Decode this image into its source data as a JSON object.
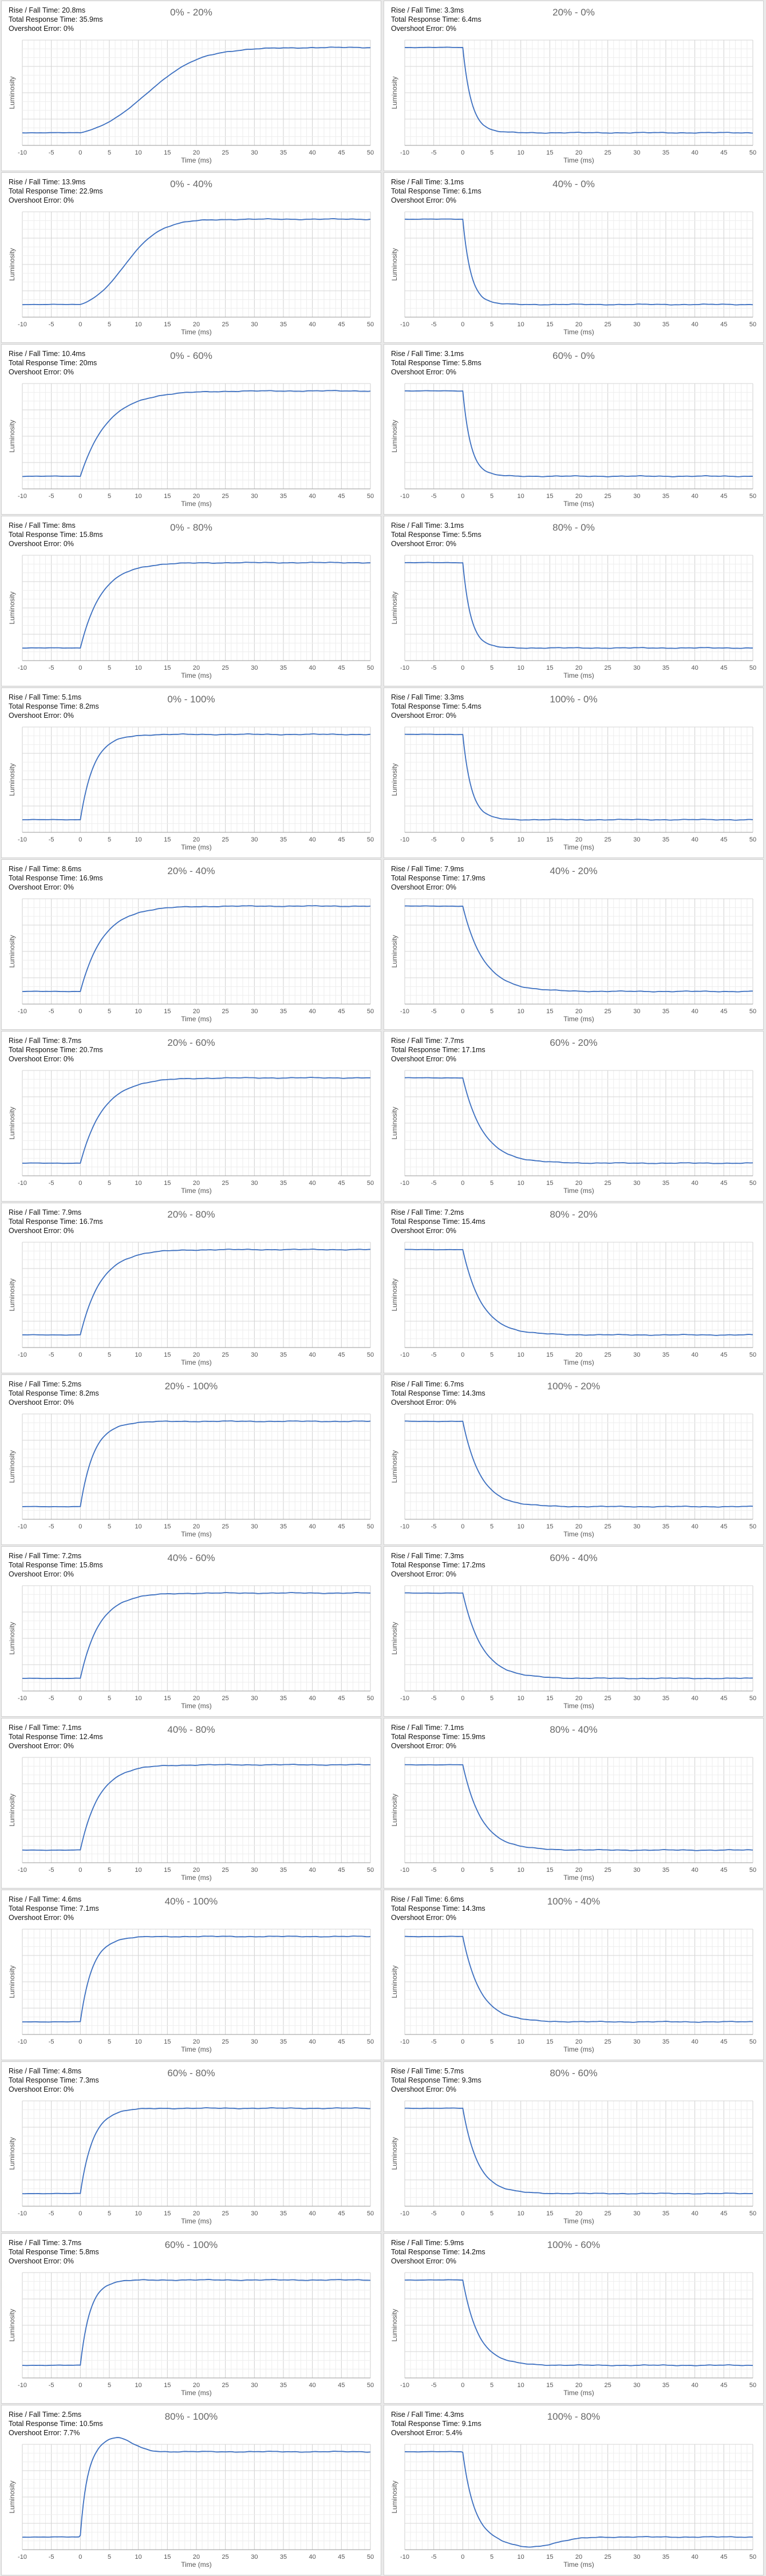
{
  "x_axis_label": "Time (ms)",
  "y_axis_label": "Luminosity",
  "stat_labels": {
    "rise_fall": "Rise / Fall Time:",
    "total": "Total Response Time:",
    "overshoot": "Overshoot Error:"
  },
  "chart_data": [
    {
      "type": "line",
      "title": "0% - 20%",
      "rise_fall_time": "20.8ms",
      "total_response_time": "35.9ms",
      "overshoot_error": "0%",
      "xlim": [
        -10,
        50
      ],
      "x_ticks": [
        -10,
        -5,
        0,
        5,
        10,
        15,
        20,
        25,
        30,
        35,
        40,
        45,
        50
      ],
      "from_level": 0,
      "to_level": 20,
      "series_color": "#3c6fc0",
      "grid": true
    },
    {
      "type": "line",
      "title": "20% - 0%",
      "rise_fall_time": "3.3ms",
      "total_response_time": "6.4ms",
      "overshoot_error": "0%",
      "xlim": [
        -10,
        50
      ],
      "x_ticks": [
        -10,
        -5,
        0,
        5,
        10,
        15,
        20,
        25,
        30,
        35,
        40,
        45,
        50
      ],
      "from_level": 20,
      "to_level": 0,
      "series_color": "#3c6fc0",
      "grid": true
    },
    {
      "type": "line",
      "title": "0% - 40%",
      "rise_fall_time": "13.9ms",
      "total_response_time": "22.9ms",
      "overshoot_error": "0%",
      "xlim": [
        -10,
        50
      ],
      "x_ticks": [
        -10,
        -5,
        0,
        5,
        10,
        15,
        20,
        25,
        30,
        35,
        40,
        45,
        50
      ],
      "from_level": 0,
      "to_level": 40,
      "series_color": "#3c6fc0",
      "grid": true
    },
    {
      "type": "line",
      "title": "40% - 0%",
      "rise_fall_time": "3.1ms",
      "total_response_time": "6.1ms",
      "overshoot_error": "0%",
      "xlim": [
        -10,
        50
      ],
      "x_ticks": [
        -10,
        -5,
        0,
        5,
        10,
        15,
        20,
        25,
        30,
        35,
        40,
        45,
        50
      ],
      "from_level": 40,
      "to_level": 0,
      "series_color": "#3c6fc0",
      "grid": true
    },
    {
      "type": "line",
      "title": "0% - 60%",
      "rise_fall_time": "10.4ms",
      "total_response_time": "20ms",
      "overshoot_error": "0%",
      "xlim": [
        -10,
        50
      ],
      "x_ticks": [
        -10,
        -5,
        0,
        5,
        10,
        15,
        20,
        25,
        30,
        35,
        40,
        45,
        50
      ],
      "from_level": 0,
      "to_level": 60,
      "series_color": "#3c6fc0",
      "grid": true
    },
    {
      "type": "line",
      "title": "60% - 0%",
      "rise_fall_time": "3.1ms",
      "total_response_time": "5.8ms",
      "overshoot_error": "0%",
      "xlim": [
        -10,
        50
      ],
      "x_ticks": [
        -10,
        -5,
        0,
        5,
        10,
        15,
        20,
        25,
        30,
        35,
        40,
        45,
        50
      ],
      "from_level": 60,
      "to_level": 0,
      "series_color": "#3c6fc0",
      "grid": true
    },
    {
      "type": "line",
      "title": "0% - 80%",
      "rise_fall_time": "8ms",
      "total_response_time": "15.8ms",
      "overshoot_error": "0%",
      "xlim": [
        -10,
        50
      ],
      "x_ticks": [
        -10,
        -5,
        0,
        5,
        10,
        15,
        20,
        25,
        30,
        35,
        40,
        45,
        50
      ],
      "from_level": 0,
      "to_level": 80,
      "series_color": "#3c6fc0",
      "grid": true
    },
    {
      "type": "line",
      "title": "80% - 0%",
      "rise_fall_time": "3.1ms",
      "total_response_time": "5.5ms",
      "overshoot_error": "0%",
      "xlim": [
        -10,
        50
      ],
      "x_ticks": [
        -10,
        -5,
        0,
        5,
        10,
        15,
        20,
        25,
        30,
        35,
        40,
        45,
        50
      ],
      "from_level": 80,
      "to_level": 0,
      "series_color": "#3c6fc0",
      "grid": true
    },
    {
      "type": "line",
      "title": "0% - 100%",
      "rise_fall_time": "5.1ms",
      "total_response_time": "8.2ms",
      "overshoot_error": "0%",
      "xlim": [
        -10,
        50
      ],
      "x_ticks": [
        -10,
        -5,
        0,
        5,
        10,
        15,
        20,
        25,
        30,
        35,
        40,
        45,
        50
      ],
      "from_level": 0,
      "to_level": 100,
      "series_color": "#3c6fc0",
      "grid": true
    },
    {
      "type": "line",
      "title": "100% - 0%",
      "rise_fall_time": "3.3ms",
      "total_response_time": "5.4ms",
      "overshoot_error": "0%",
      "xlim": [
        -10,
        50
      ],
      "x_ticks": [
        -10,
        -5,
        0,
        5,
        10,
        15,
        20,
        25,
        30,
        35,
        40,
        45,
        50
      ],
      "from_level": 100,
      "to_level": 0,
      "series_color": "#3c6fc0",
      "grid": true
    },
    {
      "type": "line",
      "title": "20% - 40%",
      "rise_fall_time": "8.6ms",
      "total_response_time": "16.9ms",
      "overshoot_error": "0%",
      "xlim": [
        -10,
        50
      ],
      "x_ticks": [
        -10,
        -5,
        0,
        5,
        10,
        15,
        20,
        25,
        30,
        35,
        40,
        45,
        50
      ],
      "from_level": 20,
      "to_level": 40,
      "series_color": "#3c6fc0",
      "grid": true
    },
    {
      "type": "line",
      "title": "40% - 20%",
      "rise_fall_time": "7.9ms",
      "total_response_time": "17.9ms",
      "overshoot_error": "0%",
      "xlim": [
        -10,
        50
      ],
      "x_ticks": [
        -10,
        -5,
        0,
        5,
        10,
        15,
        20,
        25,
        30,
        35,
        40,
        45,
        50
      ],
      "from_level": 40,
      "to_level": 20,
      "series_color": "#3c6fc0",
      "grid": true
    },
    {
      "type": "line",
      "title": "20% - 60%",
      "rise_fall_time": "8.7ms",
      "total_response_time": "20.7ms",
      "overshoot_error": "0%",
      "xlim": [
        -10,
        50
      ],
      "x_ticks": [
        -10,
        -5,
        0,
        5,
        10,
        15,
        20,
        25,
        30,
        35,
        40,
        45,
        50
      ],
      "from_level": 20,
      "to_level": 60,
      "series_color": "#3c6fc0",
      "grid": true
    },
    {
      "type": "line",
      "title": "60% - 20%",
      "rise_fall_time": "7.7ms",
      "total_response_time": "17.1ms",
      "overshoot_error": "0%",
      "xlim": [
        -10,
        50
      ],
      "x_ticks": [
        -10,
        -5,
        0,
        5,
        10,
        15,
        20,
        25,
        30,
        35,
        40,
        45,
        50
      ],
      "from_level": 60,
      "to_level": 20,
      "series_color": "#3c6fc0",
      "grid": true
    },
    {
      "type": "line",
      "title": "20% - 80%",
      "rise_fall_time": "7.9ms",
      "total_response_time": "16.7ms",
      "overshoot_error": "0%",
      "xlim": [
        -10,
        50
      ],
      "x_ticks": [
        -10,
        -5,
        0,
        5,
        10,
        15,
        20,
        25,
        30,
        35,
        40,
        45,
        50
      ],
      "from_level": 20,
      "to_level": 80,
      "series_color": "#3c6fc0",
      "grid": true
    },
    {
      "type": "line",
      "title": "80% - 20%",
      "rise_fall_time": "7.2ms",
      "total_response_time": "15.4ms",
      "overshoot_error": "0%",
      "xlim": [
        -10,
        50
      ],
      "x_ticks": [
        -10,
        -5,
        0,
        5,
        10,
        15,
        20,
        25,
        30,
        35,
        40,
        45,
        50
      ],
      "from_level": 80,
      "to_level": 20,
      "series_color": "#3c6fc0",
      "grid": true
    },
    {
      "type": "line",
      "title": "20% - 100%",
      "rise_fall_time": "5.2ms",
      "total_response_time": "8.2ms",
      "overshoot_error": "0%",
      "xlim": [
        -10,
        50
      ],
      "x_ticks": [
        -10,
        -5,
        0,
        5,
        10,
        15,
        20,
        25,
        30,
        35,
        40,
        45,
        50
      ],
      "from_level": 20,
      "to_level": 100,
      "series_color": "#3c6fc0",
      "grid": true
    },
    {
      "type": "line",
      "title": "100% - 20%",
      "rise_fall_time": "6.7ms",
      "total_response_time": "14.3ms",
      "overshoot_error": "0%",
      "xlim": [
        -10,
        50
      ],
      "x_ticks": [
        -10,
        -5,
        0,
        5,
        10,
        15,
        20,
        25,
        30,
        35,
        40,
        45,
        50
      ],
      "from_level": 100,
      "to_level": 20,
      "series_color": "#3c6fc0",
      "grid": true
    },
    {
      "type": "line",
      "title": "40% - 60%",
      "rise_fall_time": "7.2ms",
      "total_response_time": "15.8ms",
      "overshoot_error": "0%",
      "xlim": [
        -10,
        50
      ],
      "x_ticks": [
        -10,
        -5,
        0,
        5,
        10,
        15,
        20,
        25,
        30,
        35,
        40,
        45,
        50
      ],
      "from_level": 40,
      "to_level": 60,
      "series_color": "#3c6fc0",
      "grid": true
    },
    {
      "type": "line",
      "title": "60% - 40%",
      "rise_fall_time": "7.3ms",
      "total_response_time": "17.2ms",
      "overshoot_error": "0%",
      "xlim": [
        -10,
        50
      ],
      "x_ticks": [
        -10,
        -5,
        0,
        5,
        10,
        15,
        20,
        25,
        30,
        35,
        40,
        45,
        50
      ],
      "from_level": 60,
      "to_level": 40,
      "series_color": "#3c6fc0",
      "grid": true
    },
    {
      "type": "line",
      "title": "40% - 80%",
      "rise_fall_time": "7.1ms",
      "total_response_time": "12.4ms",
      "overshoot_error": "0%",
      "xlim": [
        -10,
        50
      ],
      "x_ticks": [
        -10,
        -5,
        0,
        5,
        10,
        15,
        20,
        25,
        30,
        35,
        40,
        45,
        50
      ],
      "from_level": 40,
      "to_level": 80,
      "series_color": "#3c6fc0",
      "grid": true
    },
    {
      "type": "line",
      "title": "80% - 40%",
      "rise_fall_time": "7.1ms",
      "total_response_time": "15.9ms",
      "overshoot_error": "0%",
      "xlim": [
        -10,
        50
      ],
      "x_ticks": [
        -10,
        -5,
        0,
        5,
        10,
        15,
        20,
        25,
        30,
        35,
        40,
        45,
        50
      ],
      "from_level": 80,
      "to_level": 40,
      "series_color": "#3c6fc0",
      "grid": true
    },
    {
      "type": "line",
      "title": "40% - 100%",
      "rise_fall_time": "4.6ms",
      "total_response_time": "7.1ms",
      "overshoot_error": "0%",
      "xlim": [
        -10,
        50
      ],
      "x_ticks": [
        -10,
        -5,
        0,
        5,
        10,
        15,
        20,
        25,
        30,
        35,
        40,
        45,
        50
      ],
      "from_level": 40,
      "to_level": 100,
      "series_color": "#3c6fc0",
      "grid": true
    },
    {
      "type": "line",
      "title": "100% - 40%",
      "rise_fall_time": "6.6ms",
      "total_response_time": "14.3ms",
      "overshoot_error": "0%",
      "xlim": [
        -10,
        50
      ],
      "x_ticks": [
        -10,
        -5,
        0,
        5,
        10,
        15,
        20,
        25,
        30,
        35,
        40,
        45,
        50
      ],
      "from_level": 100,
      "to_level": 40,
      "series_color": "#3c6fc0",
      "grid": true
    },
    {
      "type": "line",
      "title": "60% - 80%",
      "rise_fall_time": "4.8ms",
      "total_response_time": "7.3ms",
      "overshoot_error": "0%",
      "xlim": [
        -10,
        50
      ],
      "x_ticks": [
        -10,
        -5,
        0,
        5,
        10,
        15,
        20,
        25,
        30,
        35,
        40,
        45,
        50
      ],
      "from_level": 60,
      "to_level": 80,
      "series_color": "#3c6fc0",
      "grid": true
    },
    {
      "type": "line",
      "title": "80% - 60%",
      "rise_fall_time": "5.7ms",
      "total_response_time": "9.3ms",
      "overshoot_error": "0%",
      "xlim": [
        -10,
        50
      ],
      "x_ticks": [
        -10,
        -5,
        0,
        5,
        10,
        15,
        20,
        25,
        30,
        35,
        40,
        45,
        50
      ],
      "from_level": 80,
      "to_level": 60,
      "series_color": "#3c6fc0",
      "grid": true
    },
    {
      "type": "line",
      "title": "60% - 100%",
      "rise_fall_time": "3.7ms",
      "total_response_time": "5.8ms",
      "overshoot_error": "0%",
      "xlim": [
        -10,
        50
      ],
      "x_ticks": [
        -10,
        -5,
        0,
        5,
        10,
        15,
        20,
        25,
        30,
        35,
        40,
        45,
        50
      ],
      "from_level": 60,
      "to_level": 100,
      "series_color": "#3c6fc0",
      "grid": true
    },
    {
      "type": "line",
      "title": "100% - 60%",
      "rise_fall_time": "5.9ms",
      "total_response_time": "14.2ms",
      "overshoot_error": "0%",
      "xlim": [
        -10,
        50
      ],
      "x_ticks": [
        -10,
        -5,
        0,
        5,
        10,
        15,
        20,
        25,
        30,
        35,
        40,
        45,
        50
      ],
      "from_level": 100,
      "to_level": 60,
      "series_color": "#3c6fc0",
      "grid": true
    },
    {
      "type": "line",
      "title": "80% - 100%",
      "rise_fall_time": "2.5ms",
      "total_response_time": "10.5ms",
      "overshoot_error": "7.7%",
      "xlim": [
        -10,
        50
      ],
      "x_ticks": [
        -10,
        -5,
        0,
        5,
        10,
        15,
        20,
        25,
        30,
        35,
        40,
        45,
        50
      ],
      "from_level": 80,
      "to_level": 100,
      "series_color": "#3c6fc0",
      "grid": true
    },
    {
      "type": "line",
      "title": "100% - 80%",
      "rise_fall_time": "4.3ms",
      "total_response_time": "9.1ms",
      "overshoot_error": "5.4%",
      "xlim": [
        -10,
        50
      ],
      "x_ticks": [
        -10,
        -5,
        0,
        5,
        10,
        15,
        20,
        25,
        30,
        35,
        40,
        45,
        50
      ],
      "from_level": 100,
      "to_level": 80,
      "series_color": "#3c6fc0",
      "grid": true
    }
  ]
}
